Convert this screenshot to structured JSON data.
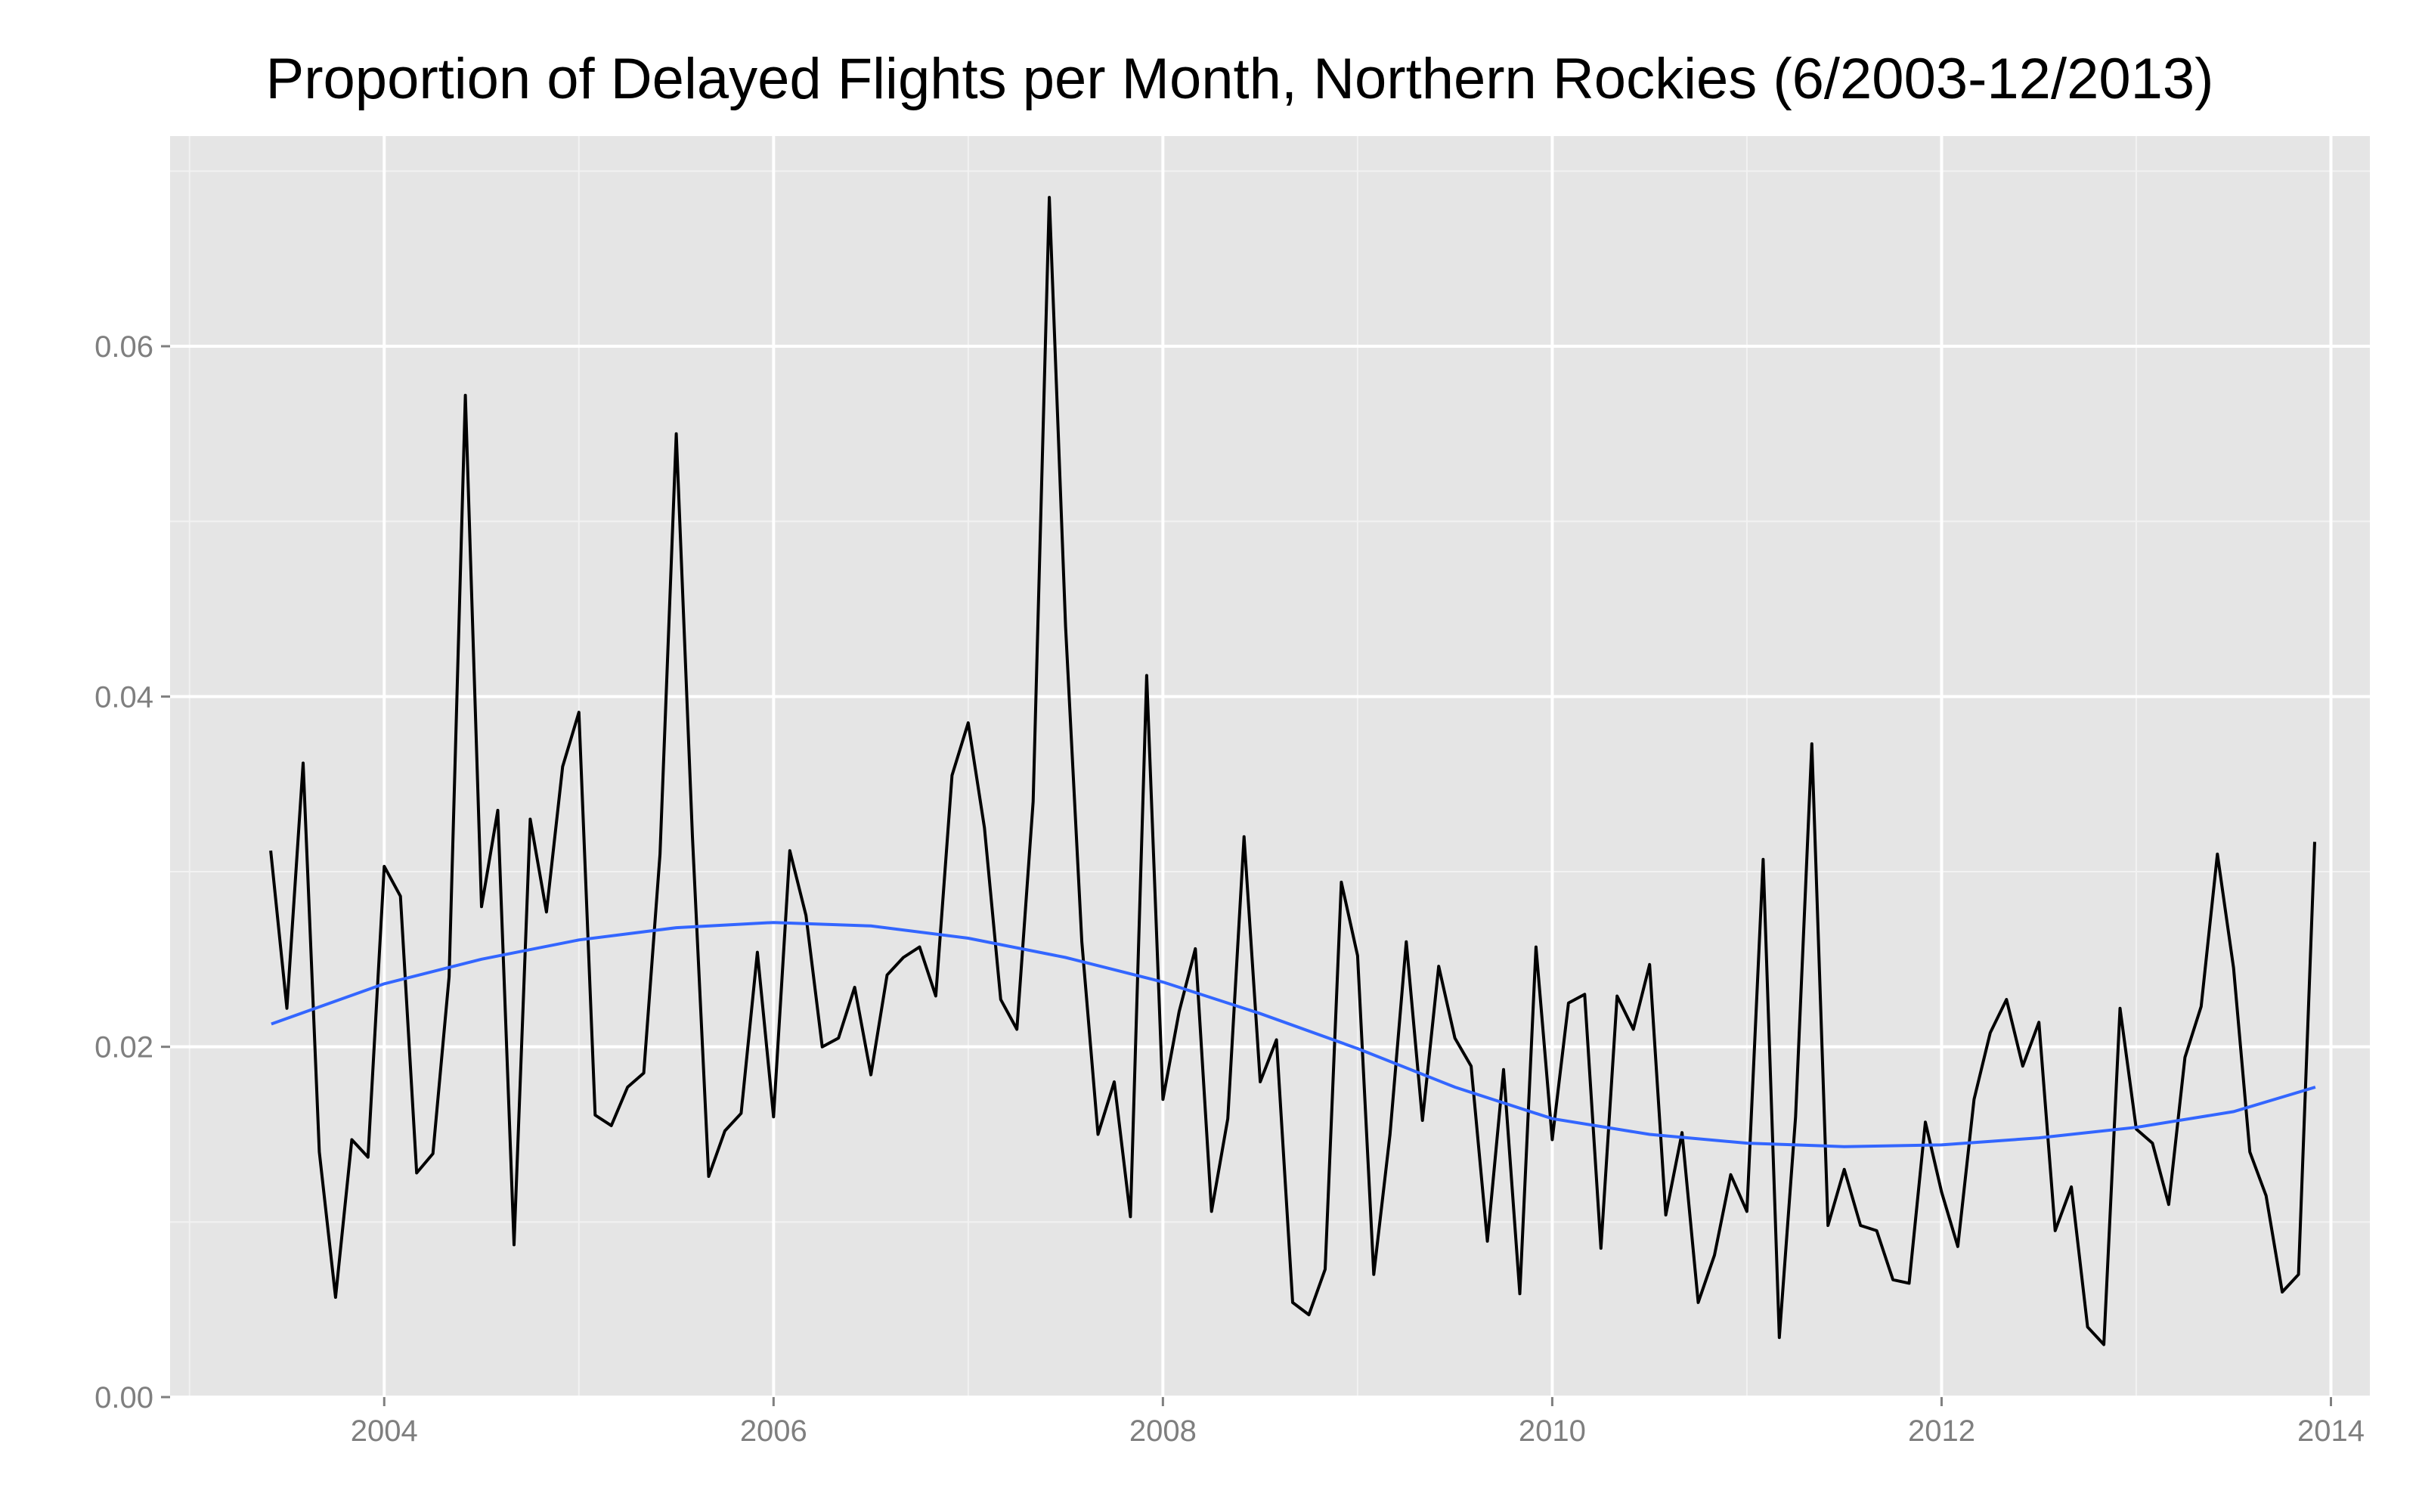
{
  "chart_data": {
    "type": "line",
    "title": "Proportion of Delayed Flights per Month, Northern Rockies (6/2003-12/2013)",
    "xlabel": "",
    "ylabel": "",
    "xlim": [
      2002.9,
      2014.2
    ],
    "ylim": [
      0.0,
      0.072
    ],
    "x_ticks": [
      2004,
      2006,
      2008,
      2010,
      2012,
      2014
    ],
    "x_tick_labels": [
      "2004",
      "2006",
      "2008",
      "2010",
      "2012",
      "2014"
    ],
    "y_ticks": [
      0.0,
      0.02,
      0.04,
      0.06
    ],
    "y_tick_labels": [
      "0.00",
      "0.02",
      "0.04",
      "0.06"
    ],
    "grid": true,
    "legend": "none",
    "colors": {
      "series": "#000000",
      "trend": "#3366ff",
      "panel": "#e5e5e5"
    },
    "series": [
      {
        "x_start": "2003-06",
        "x_end": "2013-12",
        "interval": "monthly",
        "values": [
          0.0312,
          0.0222,
          0.0362,
          0.014,
          0.0057,
          0.0147,
          0.0137,
          0.0303,
          0.0286,
          0.0128,
          0.0139,
          0.024,
          0.0572,
          0.028,
          0.0335,
          0.0087,
          0.033,
          0.0277,
          0.036,
          0.0391,
          0.0161,
          0.0155,
          0.0177,
          0.0185,
          0.031,
          0.055,
          0.032,
          0.0126,
          0.0152,
          0.0162,
          0.0254,
          0.016,
          0.0312,
          0.0275,
          0.02,
          0.0205,
          0.0234,
          0.0184,
          0.0241,
          0.0251,
          0.0257,
          0.0229,
          0.0355,
          0.0385,
          0.0325,
          0.0227,
          0.021,
          0.034,
          0.0685,
          0.044,
          0.026,
          0.015,
          0.018,
          0.0103,
          0.0412,
          0.017,
          0.022,
          0.0256,
          0.0106,
          0.0159,
          0.032,
          0.018,
          0.0204,
          0.0054,
          0.0047,
          0.0073,
          0.0294,
          0.0252,
          0.007,
          0.015,
          0.026,
          0.0158,
          0.0246,
          0.0205,
          0.0189,
          0.0089,
          0.0187,
          0.0059,
          0.0257,
          0.0147,
          0.0225,
          0.023,
          0.0085,
          0.0229,
          0.021,
          0.0247,
          0.0104,
          0.0151,
          0.0054,
          0.0081,
          0.0127,
          0.0106,
          0.0307,
          0.0034,
          0.016,
          0.0373,
          0.0098,
          0.013,
          0.0098,
          0.0095,
          0.0067,
          0.0065,
          0.0157,
          0.0117,
          0.0086,
          0.017,
          0.0208,
          0.0227,
          0.0189,
          0.0214,
          0.0095,
          0.012,
          0.004,
          0.003,
          0.0222,
          0.0153,
          0.0145,
          0.011,
          0.0194,
          0.0223,
          0.031,
          0.0245,
          0.014,
          0.0115,
          0.006,
          0.007,
          0.0317
        ]
      }
    ],
    "trend": {
      "x": [
        2003.42,
        2004.0,
        2004.5,
        2005.0,
        2005.5,
        2006.0,
        2006.5,
        2007.0,
        2007.5,
        2008.0,
        2008.5,
        2009.0,
        2009.5,
        2010.0,
        2010.5,
        2011.0,
        2011.5,
        2012.0,
        2012.5,
        2013.0,
        2013.5,
        2013.92
      ],
      "values": [
        0.0213,
        0.0236,
        0.025,
        0.0261,
        0.0268,
        0.0271,
        0.0269,
        0.0262,
        0.0251,
        0.0237,
        0.0219,
        0.0199,
        0.0177,
        0.0159,
        0.015,
        0.0145,
        0.0143,
        0.0144,
        0.0148,
        0.0154,
        0.0163,
        0.0177
      ]
    }
  }
}
